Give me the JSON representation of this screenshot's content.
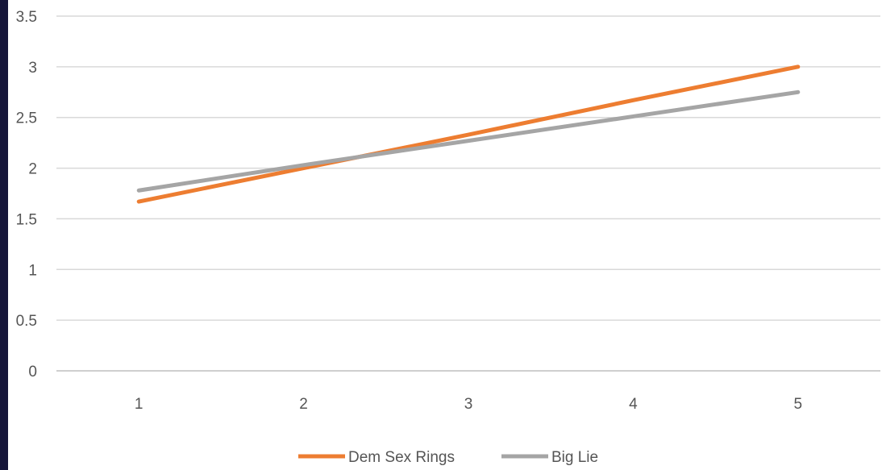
{
  "chart_data": {
    "type": "line",
    "title": "",
    "xlabel": "",
    "ylabel": "",
    "categories": [
      "1",
      "2",
      "3",
      "4",
      "5"
    ],
    "ylim": [
      0,
      3.5
    ],
    "yticks": [
      "0",
      "0.5",
      "1",
      "1.5",
      "2",
      "2.5",
      "3",
      "3.5"
    ],
    "grid": true,
    "legend_position": "bottom",
    "series": [
      {
        "name": "Dem Sex Rings",
        "color": "#ED7D31",
        "values": [
          1.67,
          2.0,
          2.33,
          2.67,
          3.0
        ]
      },
      {
        "name": "Big Lie",
        "color": "#A5A5A5",
        "values": [
          1.78,
          2.03,
          2.27,
          2.51,
          2.75
        ]
      }
    ]
  }
}
